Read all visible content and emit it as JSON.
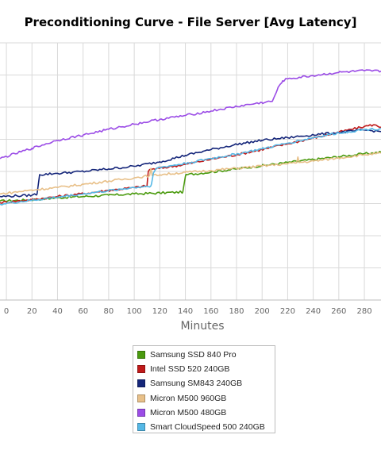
{
  "chart_data": {
    "type": "line",
    "title": "Preconditioning Curve - File Server [Avg Latency]",
    "xlabel": "Minutes",
    "ylabel": "",
    "x_ticks": [
      0,
      20,
      40,
      60,
      80,
      100,
      120,
      140,
      160,
      180,
      200,
      220,
      240,
      260,
      280
    ],
    "x_tick_labels": [
      "0",
      "20",
      "40",
      "60",
      "80",
      "100",
      "120",
      "140",
      "160",
      "180",
      "200",
      "220",
      "240",
      "260",
      "280"
    ],
    "xlim": [
      -5,
      293
    ],
    "ylim": [
      0,
      8
    ],
    "grid": true,
    "legend_position": "bottom",
    "series": [
      {
        "name": "Samsung SSD 840 Pro",
        "color": "#4a9a0e",
        "points": [
          [
            -5,
            3.08
          ],
          [
            20,
            3.12
          ],
          [
            40,
            3.18
          ],
          [
            60,
            3.22
          ],
          [
            80,
            3.26
          ],
          [
            100,
            3.3
          ],
          [
            120,
            3.33
          ],
          [
            138,
            3.36
          ],
          [
            139,
            3.6
          ],
          [
            140,
            3.85
          ],
          [
            141,
            3.9
          ],
          [
            160,
            3.98
          ],
          [
            180,
            4.08
          ],
          [
            200,
            4.18
          ],
          [
            220,
            4.28
          ],
          [
            240,
            4.37
          ],
          [
            260,
            4.46
          ],
          [
            280,
            4.55
          ],
          [
            293,
            4.6
          ]
        ]
      },
      {
        "name": "Intel SSD 520 240GB",
        "color": "#c01a1a",
        "points": [
          [
            -5,
            3.03
          ],
          [
            20,
            3.12
          ],
          [
            40,
            3.22
          ],
          [
            60,
            3.31
          ],
          [
            80,
            3.41
          ],
          [
            100,
            3.5
          ],
          [
            110,
            3.55
          ],
          [
            111,
            4.0
          ],
          [
            112,
            4.06
          ],
          [
            120,
            4.1
          ],
          [
            140,
            4.22
          ],
          [
            160,
            4.38
          ],
          [
            180,
            4.52
          ],
          [
            200,
            4.68
          ],
          [
            220,
            4.86
          ],
          [
            240,
            5.04
          ],
          [
            260,
            5.22
          ],
          [
            280,
            5.4
          ],
          [
            287,
            5.45
          ],
          [
            293,
            5.38
          ]
        ]
      },
      {
        "name": "Samsung SM843 240GB",
        "color": "#15267a",
        "points": [
          [
            -5,
            3.22
          ],
          [
            20,
            3.26
          ],
          [
            24,
            3.3
          ],
          [
            25,
            3.6
          ],
          [
            26,
            3.9
          ],
          [
            40,
            3.94
          ],
          [
            60,
            4.0
          ],
          [
            80,
            4.08
          ],
          [
            100,
            4.16
          ],
          [
            120,
            4.3
          ],
          [
            140,
            4.5
          ],
          [
            160,
            4.68
          ],
          [
            180,
            4.84
          ],
          [
            200,
            4.97
          ],
          [
            220,
            5.05
          ],
          [
            240,
            5.14
          ],
          [
            260,
            5.21
          ],
          [
            280,
            5.29
          ],
          [
            293,
            5.24
          ]
        ]
      },
      {
        "name": "Micron M500 960GB",
        "color": "#e8c089",
        "points": [
          [
            -5,
            3.3
          ],
          [
            20,
            3.42
          ],
          [
            40,
            3.5
          ],
          [
            60,
            3.6
          ],
          [
            80,
            3.7
          ],
          [
            100,
            3.8
          ],
          [
            112,
            3.87
          ],
          [
            113,
            4.1
          ],
          [
            114,
            3.87
          ],
          [
            120,
            3.9
          ],
          [
            140,
            3.97
          ],
          [
            160,
            4.03
          ],
          [
            180,
            4.1
          ],
          [
            200,
            4.17
          ],
          [
            220,
            4.24
          ],
          [
            227,
            4.27
          ],
          [
            228,
            4.45
          ],
          [
            229,
            4.28
          ],
          [
            240,
            4.32
          ],
          [
            260,
            4.42
          ],
          [
            280,
            4.52
          ],
          [
            293,
            4.57
          ]
        ]
      },
      {
        "name": "Micron M500 480GB",
        "color": "#9b4ce6",
        "points": [
          [
            -5,
            4.4
          ],
          [
            20,
            4.72
          ],
          [
            40,
            4.97
          ],
          [
            60,
            5.13
          ],
          [
            80,
            5.31
          ],
          [
            100,
            5.47
          ],
          [
            120,
            5.62
          ],
          [
            140,
            5.74
          ],
          [
            160,
            5.88
          ],
          [
            180,
            6.02
          ],
          [
            200,
            6.14
          ],
          [
            208,
            6.18
          ],
          [
            212,
            6.55
          ],
          [
            216,
            6.82
          ],
          [
            220,
            6.88
          ],
          [
            240,
            6.98
          ],
          [
            260,
            7.08
          ],
          [
            280,
            7.13
          ],
          [
            293,
            7.12
          ]
        ]
      },
      {
        "name": "Smart CloudSpeed 500 240GB",
        "color": "#55b8e6",
        "points": [
          [
            -5,
            2.98
          ],
          [
            20,
            3.1
          ],
          [
            40,
            3.2
          ],
          [
            60,
            3.3
          ],
          [
            80,
            3.4
          ],
          [
            100,
            3.5
          ],
          [
            113,
            3.55
          ],
          [
            115,
            3.95
          ],
          [
            117,
            4.08
          ],
          [
            120,
            4.12
          ],
          [
            140,
            4.25
          ],
          [
            160,
            4.4
          ],
          [
            180,
            4.54
          ],
          [
            200,
            4.7
          ],
          [
            220,
            4.88
          ],
          [
            240,
            5.05
          ],
          [
            260,
            5.2
          ],
          [
            280,
            5.3
          ],
          [
            293,
            5.33
          ]
        ]
      }
    ]
  }
}
